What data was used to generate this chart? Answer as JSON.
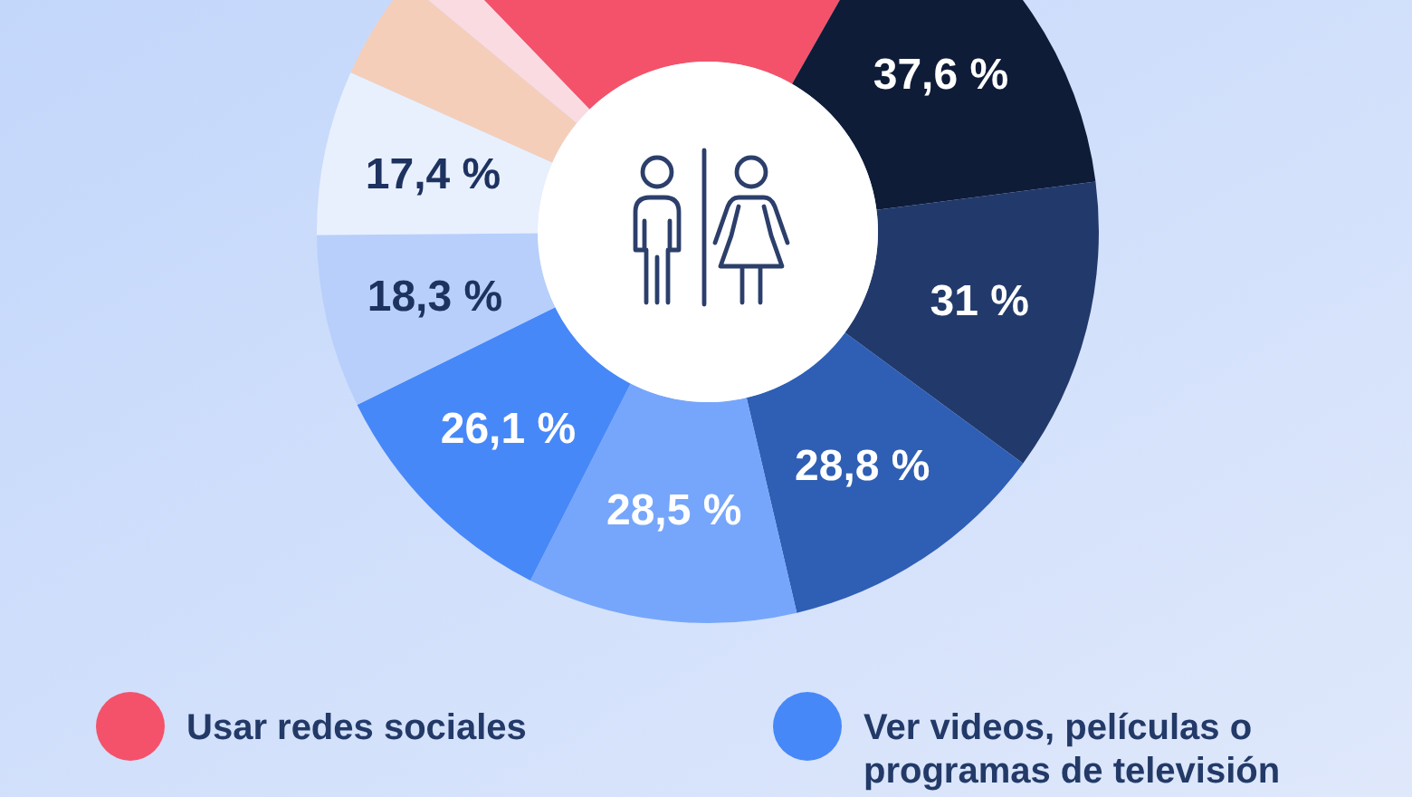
{
  "chart_data": {
    "type": "donut",
    "categories": [
      "Usar redes sociales",
      null,
      null,
      null,
      null,
      "Ver videos, películas o programas de televisión",
      null,
      null,
      null,
      null
    ],
    "values": [
      52.3,
      37.6,
      31,
      28.8,
      28.5,
      26.1,
      18.3,
      17.4,
      11.1,
      4.5
    ],
    "colors": [
      "#f4526a",
      "#0f1c38",
      "#223a6b",
      "#2f5fb4",
      "#76a6fb",
      "#4788f8",
      "#b7cffa",
      "#e8f0fe",
      "#f5ceb9",
      "#fadbe2"
    ],
    "value_labels": [
      null,
      "37,6 %",
      "31 %",
      "28,8 %",
      "28,5 %",
      "26,1 %",
      "18,3 %",
      "17,4 %",
      null,
      null
    ],
    "legend": "bottom"
  }
}
